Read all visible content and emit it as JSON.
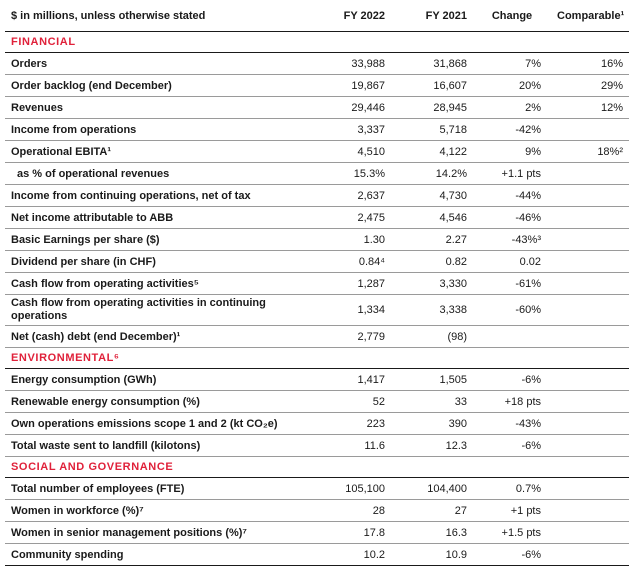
{
  "header": {
    "label": "$ in millions, unless otherwise stated",
    "fy2022": "FY 2022",
    "fy2021": "FY 2021",
    "change": "Change",
    "comparable": "Comparable¹"
  },
  "sections": [
    {
      "title": "FINANCIAL",
      "rows": [
        {
          "label": "Orders",
          "fy2022": "33,988",
          "fy2021": "31,868",
          "change": "7%",
          "comparable": "16%"
        },
        {
          "label": "Order backlog (end December)",
          "fy2022": "19,867",
          "fy2021": "16,607",
          "change": "20%",
          "comparable": "29%"
        },
        {
          "label": "Revenues",
          "fy2022": "29,446",
          "fy2021": "28,945",
          "change": "2%",
          "comparable": "12%"
        },
        {
          "label": "Income from operations",
          "fy2022": "3,337",
          "fy2021": "5,718",
          "change": "-42%",
          "comparable": ""
        },
        {
          "label": "Operational EBITA¹",
          "fy2022": "4,510",
          "fy2021": "4,122",
          "change": "9%",
          "comparable": "18%²"
        },
        {
          "label": "as % of operational revenues",
          "fy2022": "15.3%",
          "fy2021": "14.2%",
          "change": "+1.1 pts",
          "comparable": ""
        },
        {
          "label": "Income from continuing operations, net of tax",
          "fy2022": "2,637",
          "fy2021": "4,730",
          "change": "-44%",
          "comparable": ""
        },
        {
          "label": "Net income attributable to ABB",
          "fy2022": "2,475",
          "fy2021": "4,546",
          "change": "-46%",
          "comparable": ""
        },
        {
          "label": "Basic Earnings per share ($)",
          "fy2022": "1.30",
          "fy2021": "2.27",
          "change": "-43%³",
          "comparable": ""
        },
        {
          "label": "Dividend per share  (in CHF)",
          "fy2022": "0.84⁴",
          "fy2021": "0.82",
          "change": "0.02",
          "comparable": ""
        },
        {
          "label": "Cash flow from operating activities⁵",
          "fy2022": "1,287",
          "fy2021": "3,330",
          "change": "-61%",
          "comparable": ""
        },
        {
          "label": "Cash flow from operating activities in continuing operations",
          "fy2022": "1,334",
          "fy2021": "3,338",
          "change": "-60%",
          "comparable": ""
        },
        {
          "label": "Net (cash) debt (end December)¹",
          "fy2022": "2,779",
          "fy2021": "(98)",
          "change": "",
          "comparable": ""
        }
      ]
    },
    {
      "title": "ENVIRONMENTAL⁶",
      "rows": [
        {
          "label": "Energy consumption (GWh)",
          "fy2022": "1,417",
          "fy2021": "1,505",
          "change": "-6%",
          "comparable": ""
        },
        {
          "label": "Renewable energy consumption (%)",
          "fy2022": "52",
          "fy2021": "33",
          "change": "+18 pts",
          "comparable": ""
        },
        {
          "label": "Own operations emissions scope 1 and 2 (kt CO₂e)",
          "fy2022": "223",
          "fy2021": "390",
          "change": "-43%",
          "comparable": ""
        },
        {
          "label": "Total waste sent to landfill (kilotons)",
          "fy2022": "11.6",
          "fy2021": "12.3",
          "change": "-6%",
          "comparable": ""
        }
      ]
    },
    {
      "title": "SOCIAL AND GOVERNANCE",
      "rows": [
        {
          "label": "Total number of employees (FTE)",
          "fy2022": "105,100",
          "fy2021": "104,400",
          "change": "0.7%",
          "comparable": ""
        },
        {
          "label": "Women in workforce (%)⁷",
          "fy2022": "28",
          "fy2021": "27",
          "change": "+1 pts",
          "comparable": ""
        },
        {
          "label": "Women in senior management positions (%)⁷",
          "fy2022": "17.8",
          "fy2021": "16.3",
          "change": "+1.5 pts",
          "comparable": ""
        },
        {
          "label": "Community spending",
          "fy2022": "10.2",
          "fy2021": "10.9",
          "change": "-6%",
          "comparable": ""
        }
      ]
    }
  ]
}
